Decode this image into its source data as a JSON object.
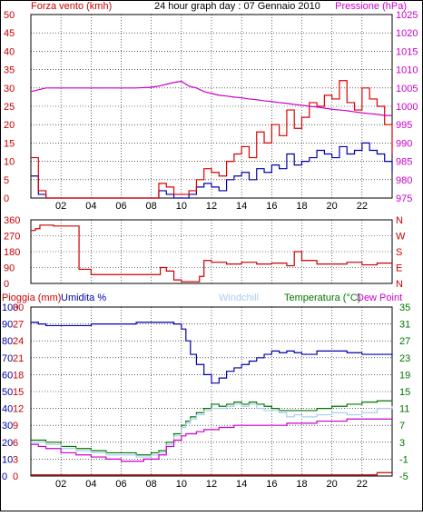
{
  "colors": {
    "frame": "#000000",
    "plot_bg": "#ffffff",
    "grid": "#000000",
    "wind_avg": "#0000aa",
    "wind_gust": "#dd0000",
    "pressure": "#cc00cc",
    "direction": "#cc0000",
    "humidity": "#0000aa",
    "temperature": "#007700",
    "dewpoint": "#cc00cc",
    "windchill": "#aaccee",
    "rain": "#cc0000"
  },
  "x_ticks": [
    "02",
    "04",
    "06",
    "08",
    "10",
    "12",
    "14",
    "16",
    "18",
    "20",
    "22"
  ],
  "chart_data": [
    {
      "type": "line",
      "id": "wind_pressure",
      "title": "24 hour graph day : 07 Gennaio 2010",
      "ylabel": "Forza vento (kmh)",
      "y2label": "Pressione (hPa)",
      "ylim": [
        0,
        50
      ],
      "y_ticks": [
        "0",
        "5",
        "10",
        "15",
        "20",
        "25",
        "30",
        "35",
        "40",
        "45",
        "50"
      ],
      "y2lim": [
        975,
        1025
      ],
      "y2_ticks": [
        "975",
        "980",
        "985",
        "990",
        "995",
        "1000",
        "1005",
        "1010",
        "1015",
        "1020",
        "1025"
      ],
      "grid": true,
      "x_hours": [
        0,
        0.5,
        1,
        2,
        3,
        4,
        5,
        6,
        7,
        8,
        8.5,
        9,
        9.5,
        10,
        10.5,
        11,
        11.5,
        12,
        12.5,
        13,
        13.5,
        14,
        14.5,
        15,
        15.5,
        16,
        16.5,
        17,
        17.5,
        18,
        18.5,
        19,
        19.5,
        20,
        20.5,
        21,
        21.5,
        22,
        22.5,
        23,
        23.5,
        24
      ],
      "series": [
        {
          "name": "Forza vento",
          "axis": "left",
          "color_key": "wind_avg",
          "values": [
            6,
            1,
            0,
            0,
            0,
            0,
            0,
            0,
            0,
            0,
            2,
            1,
            0,
            0,
            1,
            3,
            4,
            3,
            2,
            5,
            6,
            7,
            5,
            8,
            7,
            9,
            8,
            12,
            9,
            10,
            11,
            13,
            12,
            11,
            14,
            12,
            13,
            15,
            13,
            12,
            10,
            7
          ]
        },
        {
          "name": "Raffica",
          "axis": "left",
          "color_key": "wind_gust",
          "values": [
            11,
            2,
            0,
            0,
            0,
            0,
            0,
            0,
            0,
            0,
            4,
            3,
            1,
            1,
            2,
            5,
            8,
            7,
            6,
            10,
            12,
            14,
            11,
            18,
            15,
            20,
            17,
            24,
            19,
            22,
            26,
            25,
            28,
            27,
            32,
            26,
            24,
            30,
            27,
            25,
            20,
            12
          ]
        },
        {
          "name": "Pressione",
          "axis": "right",
          "color_key": "pressure",
          "values": [
            1004,
            1004.5,
            1005,
            1005,
            1005,
            1005,
            1005,
            1005,
            1005,
            1005.2,
            1005.5,
            1006,
            1006.5,
            1006.8,
            1005.5,
            1005,
            1004,
            1003.5,
            1003,
            1002.8,
            1002.5,
            1002.3,
            1002,
            1001.8,
            1001.5,
            1001.3,
            1001,
            1000.8,
            1000.5,
            1000.3,
            1000,
            999.8,
            999.5,
            999.2,
            999,
            998.8,
            998.5,
            998.2,
            998,
            997.8,
            997.5,
            997.5
          ]
        }
      ]
    },
    {
      "type": "line",
      "id": "wind_direction",
      "title": "",
      "ylim": [
        0,
        360
      ],
      "y_ticks": [
        "0",
        "90",
        "180",
        "270",
        "360"
      ],
      "y2_ticks": [
        "N",
        "E",
        "S",
        "W",
        "N"
      ],
      "grid": true,
      "x_hours": [
        0,
        0.3,
        0.6,
        1,
        1.5,
        2,
        2.5,
        3,
        3.2,
        3.5,
        4,
        5,
        6,
        7,
        8,
        8.3,
        8.6,
        9,
        9.5,
        10,
        10.5,
        11,
        11.2,
        11.5,
        12,
        13,
        14,
        15,
        16,
        17,
        17.5,
        18,
        19,
        20,
        21,
        22,
        23,
        24
      ],
      "series": [
        {
          "name": "Direzione",
          "color_key": "direction",
          "values": [
            300,
            310,
            330,
            330,
            325,
            325,
            325,
            325,
            80,
            80,
            50,
            50,
            50,
            50,
            50,
            50,
            90,
            70,
            20,
            10,
            10,
            10,
            40,
            130,
            120,
            110,
            120,
            110,
            115,
            100,
            180,
            130,
            110,
            110,
            120,
            105,
            115,
            120
          ]
        }
      ]
    },
    {
      "type": "line",
      "id": "temp_humidity",
      "title": "",
      "legend": [
        "Pioggia (mm)",
        "Umidita %",
        "Windchill",
        "Temperatura (°C)",
        "Dew Point"
      ],
      "ylim": [
        0,
        100
      ],
      "y_ticks": [
        "0",
        "10",
        "20",
        "30",
        "40",
        "50",
        "60",
        "70",
        "80",
        "90",
        "100"
      ],
      "rain_ticks": [
        "0",
        "3",
        "6",
        "9",
        "12",
        "15",
        "18",
        "21",
        "24",
        "27",
        "30"
      ],
      "y2lim": [
        -5,
        35
      ],
      "y2_ticks": [
        "-5",
        "-1",
        "3",
        "7",
        "11",
        "15",
        "19",
        "23",
        "27",
        "31",
        "35"
      ],
      "grid": true,
      "x_hours": [
        0,
        0.5,
        1,
        2,
        3,
        4,
        5,
        6,
        7,
        7.5,
        8,
        8.5,
        9,
        9.5,
        10,
        10.3,
        10.6,
        11,
        11.5,
        12,
        12.5,
        13,
        13.5,
        14,
        14.5,
        15,
        15.5,
        16,
        16.5,
        17,
        17.5,
        18,
        19,
        20,
        21,
        22,
        23,
        24
      ],
      "series": [
        {
          "name": "Umidita %",
          "axis": "left",
          "color_key": "humidity",
          "values": [
            91,
            90,
            89,
            89,
            89,
            90,
            90,
            90,
            91,
            91,
            91,
            91,
            91,
            90,
            87,
            80,
            72,
            66,
            60,
            55,
            58,
            62,
            64,
            66,
            68,
            70,
            72,
            74,
            73,
            74,
            73,
            72,
            74,
            74,
            73,
            72,
            72,
            71
          ]
        },
        {
          "name": "Temperatura (°C)",
          "axis": "right",
          "color_key": "temperature",
          "values": [
            3.5,
            3.5,
            3,
            2,
            1.5,
            1,
            0.5,
            0.5,
            0,
            0,
            0.5,
            1,
            3,
            5,
            7,
            8,
            9,
            10,
            11,
            12,
            11.5,
            12,
            12.5,
            12,
            12.5,
            12,
            11.5,
            11,
            10.5,
            10.5,
            10.5,
            10.5,
            11,
            11.5,
            12,
            12.5,
            12.8,
            13
          ]
        },
        {
          "name": "Windchill",
          "axis": "right",
          "color_key": "windchill",
          "values": [
            3,
            3,
            2.5,
            1.5,
            1,
            0.5,
            0,
            0,
            -0.5,
            -0.5,
            0,
            0.5,
            2.5,
            4.5,
            6.5,
            7.5,
            8.5,
            9.5,
            10.5,
            11,
            11,
            11.5,
            12,
            11.5,
            12,
            11,
            10.5,
            10.5,
            10,
            9,
            9.5,
            9,
            9.5,
            10,
            9.5,
            10,
            11,
            11.5
          ]
        },
        {
          "name": "Dew Point",
          "axis": "right",
          "color_key": "dewpoint",
          "values": [
            2.5,
            2,
            1.5,
            0.5,
            0,
            -0.5,
            -1,
            -1.5,
            -1.5,
            -1,
            -1,
            0,
            2,
            3.5,
            4.5,
            5,
            5,
            5.5,
            6,
            6,
            6.5,
            6.5,
            7,
            7,
            7,
            7,
            7,
            7,
            7,
            7.5,
            7.5,
            7.5,
            8,
            8,
            8.5,
            8.5,
            8.5,
            8.5
          ]
        },
        {
          "name": "Pioggia (mm)",
          "axis": "rain",
          "color_key": "rain",
          "values": [
            0.2,
            0.2,
            0.2,
            0.2,
            0.2,
            0.2,
            0.2,
            0.2,
            0.2,
            0.2,
            0.2,
            0.2,
            0.2,
            0.2,
            0.2,
            0.2,
            0.2,
            0.2,
            0.2,
            0.2,
            0.2,
            0.2,
            0.2,
            0.2,
            0.2,
            0.2,
            0.2,
            0.2,
            0.2,
            0.2,
            0.2,
            0.2,
            0.2,
            0.2,
            0.2,
            0.2,
            0.6,
            0.6
          ]
        }
      ]
    }
  ]
}
